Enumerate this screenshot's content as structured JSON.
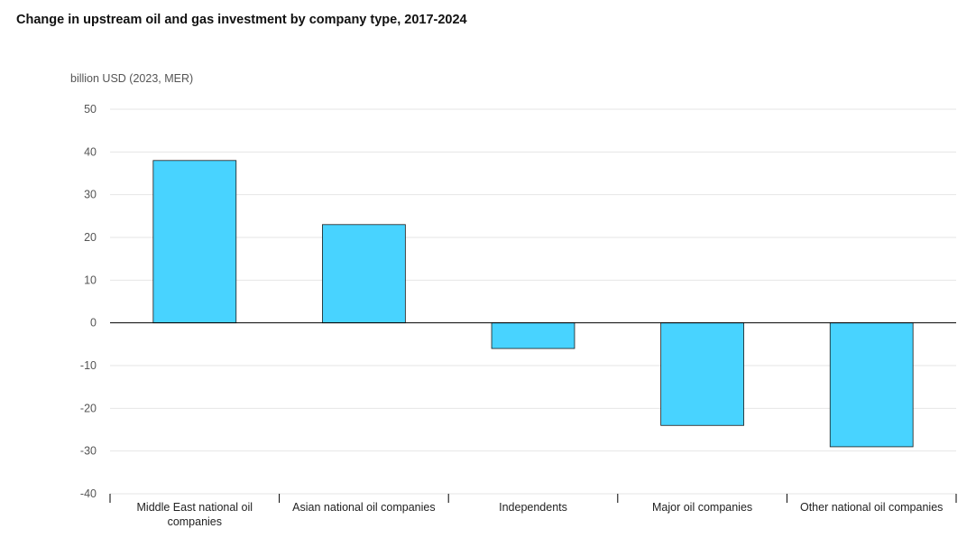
{
  "chart_data": {
    "type": "bar",
    "title": "Change in upstream oil and gas investment by company type, 2017-2024",
    "ylabel": "billion USD (2023, MER)",
    "xlabel": "",
    "categories": [
      "Middle East national oil companies",
      "Asian national oil companies",
      "Independents",
      "Major oil companies",
      "Other national oil companies"
    ],
    "category_label_lines": [
      [
        "Middle East national oil",
        "companies"
      ],
      [
        "Asian national oil companies"
      ],
      [
        "Independents"
      ],
      [
        "Major oil companies"
      ],
      [
        "Other national oil companies"
      ]
    ],
    "values": [
      38,
      23,
      -6,
      -24,
      -29
    ],
    "ylim": [
      -40,
      50
    ],
    "yticks": [
      50,
      40,
      30,
      20,
      10,
      0,
      -10,
      -20,
      -30,
      -40
    ],
    "ytick_labels": [
      "50",
      "40",
      "30",
      "20",
      "10",
      "0",
      "-10",
      "-20",
      "-30",
      "-40"
    ],
    "grid": true,
    "legend": "none",
    "colors": {
      "bar_fill": "#48d3ff",
      "bar_stroke": "#1a1a1a",
      "grid": "#e6e6e6",
      "zero_line": "#000000"
    }
  }
}
